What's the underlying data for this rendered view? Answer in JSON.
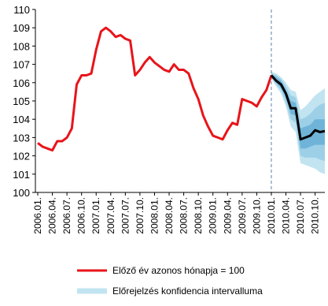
{
  "chart_data": {
    "type": "line",
    "categories": [
      "2006.01.",
      null,
      null,
      "2006.04.",
      null,
      null,
      "2006.07.",
      null,
      null,
      "2006.10.",
      null,
      null,
      "2007.01.",
      null,
      null,
      "2007.04.",
      null,
      null,
      "2007.07.",
      null,
      null,
      "2007.10.",
      null,
      null,
      "2008.01.",
      null,
      null,
      "2008.04.",
      null,
      null,
      "2008.07.",
      null,
      null,
      "2008.10.",
      null,
      null,
      "2009.01.",
      null,
      null,
      "2009.04.",
      null,
      null,
      "2009.07.",
      null,
      null,
      "2009.10.",
      null,
      null,
      "2010.01.",
      null,
      null,
      "2010.04.",
      null,
      null,
      "2010.07.",
      null,
      null,
      "2010.10.",
      null,
      null
    ],
    "ylim": [
      100,
      110
    ],
    "yticks": [
      100,
      101,
      102,
      103,
      104,
      105,
      106,
      107,
      108,
      109,
      110
    ],
    "series": [
      {
        "name": "Előző év azonos hónapja = 100",
        "color": "#e8141a",
        "values": [
          102.7,
          102.5,
          102.4,
          102.3,
          102.8,
          102.8,
          103.0,
          103.5,
          105.9,
          106.4,
          106.4,
          106.5,
          107.8,
          108.8,
          109.0,
          108.8,
          108.5,
          108.6,
          108.4,
          108.3,
          106.4,
          106.7,
          107.1,
          107.4,
          107.1,
          106.9,
          106.7,
          106.6,
          107.0,
          106.7,
          106.7,
          106.5,
          105.7,
          105.1,
          104.2,
          103.6,
          103.1,
          103.0,
          102.9,
          103.4,
          103.8,
          103.7,
          105.1,
          105.0,
          104.9,
          104.7,
          105.2,
          105.6,
          106.4,
          null,
          null,
          null,
          null,
          null,
          null,
          null,
          null,
          null,
          null,
          null
        ]
      },
      {
        "color": "#000000",
        "values": [
          null,
          null,
          null,
          null,
          null,
          null,
          null,
          null,
          null,
          null,
          null,
          null,
          null,
          null,
          null,
          null,
          null,
          null,
          null,
          null,
          null,
          null,
          null,
          null,
          null,
          null,
          null,
          null,
          null,
          null,
          null,
          null,
          null,
          null,
          null,
          null,
          null,
          null,
          null,
          null,
          null,
          null,
          null,
          null,
          null,
          null,
          null,
          null,
          106.4,
          106.1,
          105.9,
          105.4,
          104.6,
          104.6,
          102.9,
          103.0,
          103.1,
          103.4,
          103.3,
          103.35
        ]
      },
      {
        "name": "Előrejelzés konfidencia intervalluma",
        "color": "#c2e4f1",
        "lower": [
          null,
          null,
          null,
          null,
          null,
          null,
          null,
          null,
          null,
          null,
          null,
          null,
          null,
          null,
          null,
          null,
          null,
          null,
          null,
          null,
          null,
          null,
          null,
          null,
          null,
          null,
          null,
          null,
          null,
          null,
          null,
          null,
          null,
          null,
          null,
          null,
          null,
          null,
          null,
          null,
          null,
          null,
          null,
          null,
          null,
          null,
          null,
          null,
          106.2,
          105.8,
          105.4,
          104.7,
          103.6,
          103.3,
          101.6,
          101.5,
          101.4,
          101.3,
          101.1,
          101.0
        ],
        "upper": [
          null,
          null,
          null,
          null,
          null,
          null,
          null,
          null,
          null,
          null,
          null,
          null,
          null,
          null,
          null,
          null,
          null,
          null,
          null,
          null,
          null,
          null,
          null,
          null,
          null,
          null,
          null,
          null,
          null,
          null,
          null,
          null,
          null,
          null,
          null,
          null,
          null,
          null,
          null,
          null,
          null,
          null,
          null,
          null,
          null,
          null,
          null,
          null,
          106.6,
          106.5,
          106.3,
          106.0,
          105.6,
          105.5,
          104.5,
          104.7,
          105.0,
          105.3,
          105.5,
          105.7
        ]
      },
      {
        "color": "#9dd0e7",
        "lower": [
          null,
          null,
          null,
          null,
          null,
          null,
          null,
          null,
          null,
          null,
          null,
          null,
          null,
          null,
          null,
          null,
          null,
          null,
          null,
          null,
          null,
          null,
          null,
          null,
          null,
          null,
          null,
          null,
          null,
          null,
          null,
          null,
          null,
          null,
          null,
          null,
          null,
          null,
          null,
          null,
          null,
          null,
          null,
          null,
          null,
          null,
          null,
          null,
          106.3,
          105.9,
          105.6,
          104.9,
          104.0,
          103.8,
          102.0,
          101.9,
          101.9,
          101.9,
          101.8,
          101.7
        ],
        "upper": [
          null,
          null,
          null,
          null,
          null,
          null,
          null,
          null,
          null,
          null,
          null,
          null,
          null,
          null,
          null,
          null,
          null,
          null,
          null,
          null,
          null,
          null,
          null,
          null,
          null,
          null,
          null,
          null,
          null,
          null,
          null,
          null,
          null,
          null,
          null,
          null,
          null,
          null,
          null,
          null,
          null,
          null,
          null,
          null,
          null,
          null,
          null,
          null,
          106.5,
          106.4,
          106.2,
          105.8,
          105.3,
          105.2,
          104.0,
          104.1,
          104.3,
          104.6,
          104.8,
          104.9
        ]
      },
      {
        "color": "#6fb4d8",
        "lower": [
          null,
          null,
          null,
          null,
          null,
          null,
          null,
          null,
          null,
          null,
          null,
          null,
          null,
          null,
          null,
          null,
          null,
          null,
          null,
          null,
          null,
          null,
          null,
          null,
          null,
          null,
          null,
          null,
          null,
          null,
          null,
          null,
          null,
          null,
          null,
          null,
          null,
          null,
          null,
          null,
          null,
          null,
          null,
          null,
          null,
          null,
          null,
          null,
          106.35,
          106.0,
          105.7,
          105.2,
          104.3,
          104.2,
          102.4,
          102.4,
          102.5,
          102.6,
          102.6,
          102.6
        ],
        "upper": [
          null,
          null,
          null,
          null,
          null,
          null,
          null,
          null,
          null,
          null,
          null,
          null,
          null,
          null,
          null,
          null,
          null,
          null,
          null,
          null,
          null,
          null,
          null,
          null,
          null,
          null,
          null,
          null,
          null,
          null,
          null,
          null,
          null,
          null,
          null,
          null,
          null,
          null,
          null,
          null,
          null,
          null,
          null,
          null,
          null,
          null,
          null,
          null,
          106.45,
          106.3,
          106.1,
          105.6,
          105.0,
          104.9,
          103.5,
          103.6,
          103.7,
          104.0,
          104.0,
          104.0
        ]
      }
    ]
  }
}
